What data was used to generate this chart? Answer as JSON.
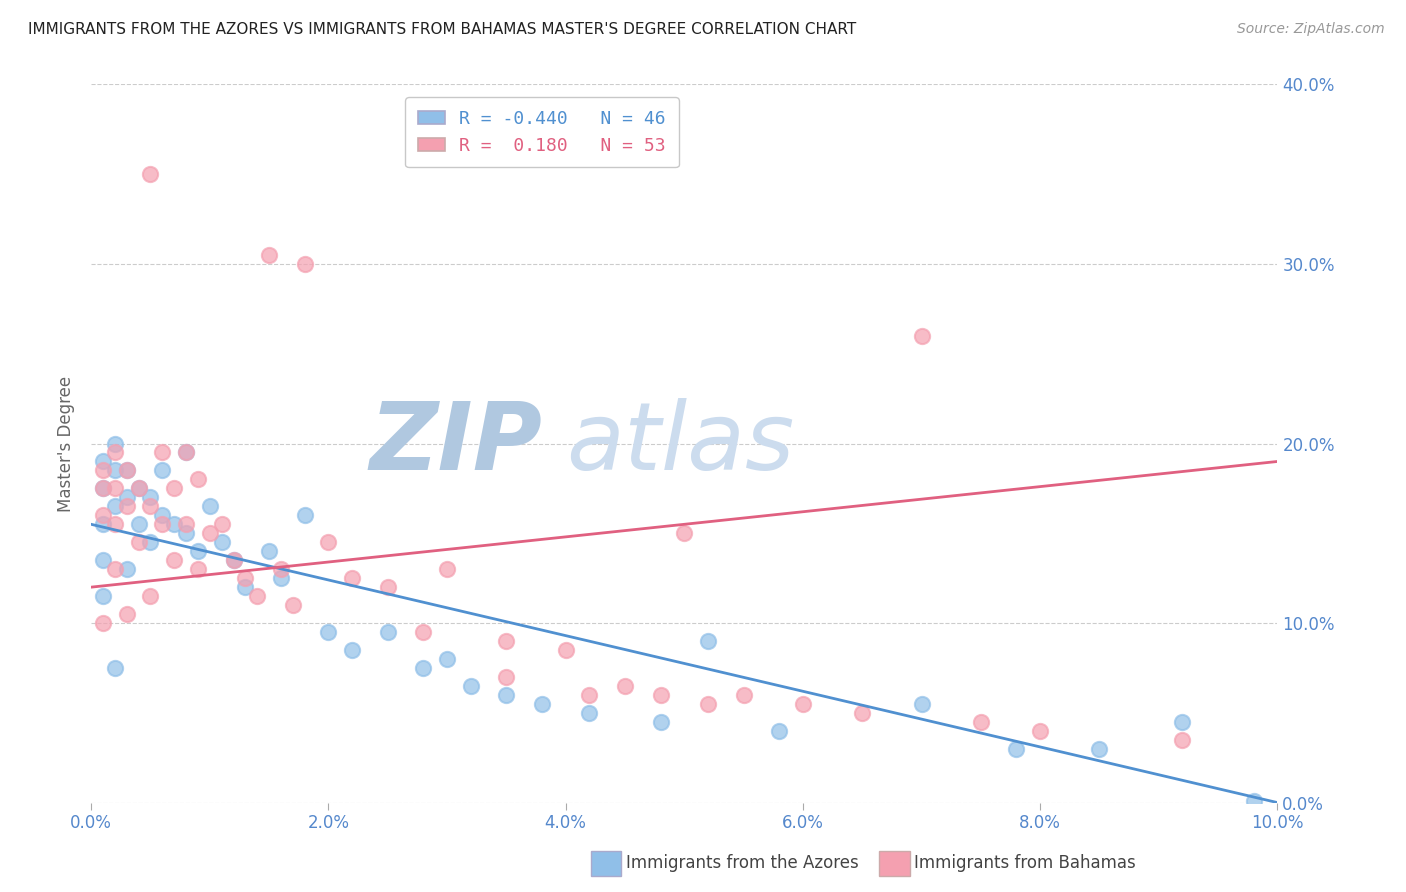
{
  "title": "IMMIGRANTS FROM THE AZORES VS IMMIGRANTS FROM BAHAMAS MASTER'S DEGREE CORRELATION CHART",
  "source": "Source: ZipAtlas.com",
  "xlabel_blue": "Immigrants from the Azores",
  "xlabel_pink": "Immigrants from Bahamas",
  "ylabel": "Master's Degree",
  "xlim": [
    0.0,
    0.1
  ],
  "ylim": [
    0.0,
    0.4
  ],
  "yticks": [
    0.0,
    0.1,
    0.2,
    0.3,
    0.4
  ],
  "xticks": [
    0.0,
    0.02,
    0.04,
    0.06,
    0.08,
    0.1
  ],
  "xtick_labels": [
    "0.0%",
    "2.0%",
    "4.0%",
    "6.0%",
    "8.0%",
    "10.0%"
  ],
  "ytick_labels": [
    "0.0%",
    "10.0%",
    "20.0%",
    "30.0%",
    "40.0%"
  ],
  "R_blue": -0.44,
  "N_blue": 46,
  "R_pink": 0.18,
  "N_pink": 53,
  "blue_color": "#90bfe8",
  "pink_color": "#f4a0b0",
  "blue_line_color": "#5090d0",
  "pink_line_color": "#e06080",
  "axis_color": "#5588cc",
  "watermark_zip_color": "#c8d8ee",
  "watermark_atlas_color": "#d8e8f8",
  "blue_scatter_x": [
    0.001,
    0.001,
    0.001,
    0.001,
    0.001,
    0.002,
    0.002,
    0.002,
    0.002,
    0.003,
    0.003,
    0.003,
    0.004,
    0.004,
    0.005,
    0.005,
    0.006,
    0.006,
    0.007,
    0.008,
    0.008,
    0.009,
    0.01,
    0.011,
    0.012,
    0.013,
    0.015,
    0.016,
    0.018,
    0.02,
    0.022,
    0.025,
    0.028,
    0.03,
    0.032,
    0.035,
    0.038,
    0.042,
    0.048,
    0.052,
    0.058,
    0.07,
    0.078,
    0.085,
    0.092,
    0.098
  ],
  "blue_scatter_y": [
    0.19,
    0.175,
    0.155,
    0.135,
    0.115,
    0.2,
    0.185,
    0.165,
    0.075,
    0.185,
    0.17,
    0.13,
    0.175,
    0.155,
    0.17,
    0.145,
    0.185,
    0.16,
    0.155,
    0.195,
    0.15,
    0.14,
    0.165,
    0.145,
    0.135,
    0.12,
    0.14,
    0.125,
    0.16,
    0.095,
    0.085,
    0.095,
    0.075,
    0.08,
    0.065,
    0.06,
    0.055,
    0.05,
    0.045,
    0.09,
    0.04,
    0.055,
    0.03,
    0.03,
    0.045,
    0.001
  ],
  "pink_scatter_x": [
    0.001,
    0.001,
    0.001,
    0.001,
    0.002,
    0.002,
    0.002,
    0.002,
    0.003,
    0.003,
    0.003,
    0.004,
    0.004,
    0.005,
    0.005,
    0.005,
    0.006,
    0.006,
    0.007,
    0.007,
    0.008,
    0.008,
    0.009,
    0.009,
    0.01,
    0.011,
    0.012,
    0.013,
    0.014,
    0.015,
    0.016,
    0.017,
    0.018,
    0.02,
    0.022,
    0.025,
    0.028,
    0.03,
    0.035,
    0.035,
    0.04,
    0.042,
    0.045,
    0.048,
    0.05,
    0.052,
    0.055,
    0.06,
    0.065,
    0.07,
    0.075,
    0.08,
    0.092
  ],
  "pink_scatter_y": [
    0.185,
    0.175,
    0.16,
    0.1,
    0.195,
    0.175,
    0.155,
    0.13,
    0.185,
    0.165,
    0.105,
    0.175,
    0.145,
    0.35,
    0.165,
    0.115,
    0.195,
    0.155,
    0.175,
    0.135,
    0.195,
    0.155,
    0.18,
    0.13,
    0.15,
    0.155,
    0.135,
    0.125,
    0.115,
    0.305,
    0.13,
    0.11,
    0.3,
    0.145,
    0.125,
    0.12,
    0.095,
    0.13,
    0.09,
    0.07,
    0.085,
    0.06,
    0.065,
    0.06,
    0.15,
    0.055,
    0.06,
    0.055,
    0.05,
    0.26,
    0.045,
    0.04,
    0.035
  ]
}
